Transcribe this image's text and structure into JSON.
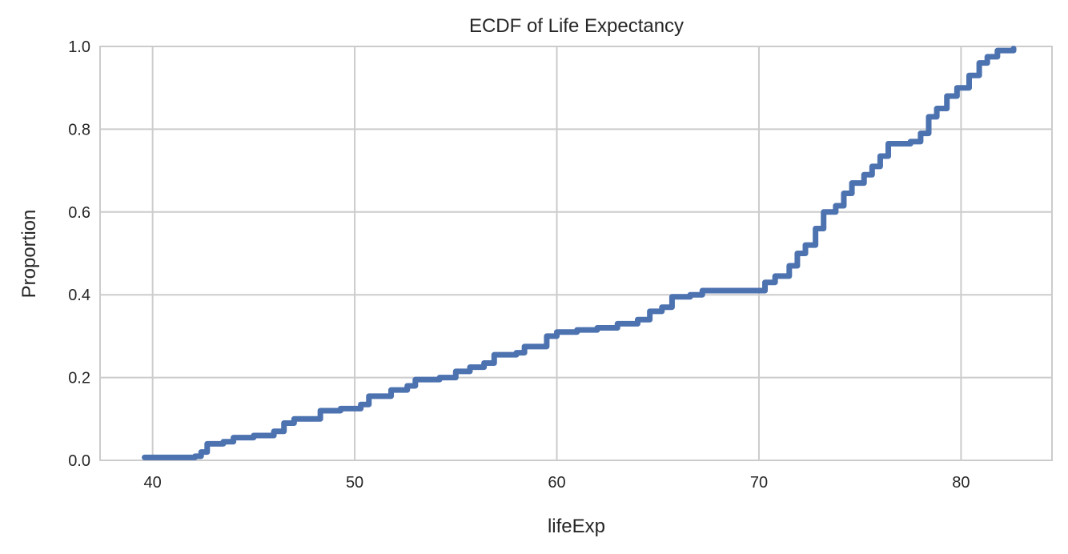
{
  "chart_data": {
    "type": "line",
    "title": "ECDF of Life Expectancy",
    "xlabel": "lifeExp",
    "ylabel": "Proportion",
    "xlim": [
      37.4,
      84.5
    ],
    "ylim": [
      0,
      1
    ],
    "xticks": [
      40,
      50,
      60,
      70,
      80
    ],
    "yticks": [
      "0.0",
      "0.2",
      "0.4",
      "0.6",
      "0.8",
      "1.0"
    ],
    "grid": true,
    "color": "#4c72b0",
    "series": [
      {
        "name": "ECDF",
        "x": [
          39.6,
          42.1,
          42.4,
          42.7,
          43.5,
          44.0,
          45.0,
          46.0,
          46.5,
          47.0,
          48.0,
          48.3,
          49.3,
          50.3,
          50.7,
          51.8,
          52.6,
          53.0,
          54.2,
          55.0,
          55.7,
          56.4,
          56.9,
          58.0,
          58.4,
          59.5,
          60.0,
          61.0,
          62.0,
          63.0,
          64.0,
          64.6,
          65.2,
          65.7,
          66.6,
          67.2,
          69.8,
          70.3,
          70.8,
          71.5,
          71.9,
          72.3,
          72.8,
          73.2,
          73.8,
          74.2,
          74.6,
          75.2,
          75.6,
          76.0,
          76.4,
          77.5,
          78.0,
          78.4,
          78.8,
          79.3,
          79.8,
          80.4,
          80.9,
          81.3,
          81.8,
          82.6
        ],
        "y": [
          0.007,
          0.01,
          0.02,
          0.04,
          0.045,
          0.055,
          0.06,
          0.07,
          0.09,
          0.1,
          0.1,
          0.12,
          0.125,
          0.135,
          0.155,
          0.17,
          0.18,
          0.195,
          0.2,
          0.215,
          0.225,
          0.235,
          0.255,
          0.26,
          0.275,
          0.3,
          0.31,
          0.315,
          0.32,
          0.33,
          0.34,
          0.36,
          0.37,
          0.395,
          0.4,
          0.41,
          0.41,
          0.43,
          0.445,
          0.47,
          0.5,
          0.52,
          0.56,
          0.6,
          0.615,
          0.645,
          0.67,
          0.69,
          0.71,
          0.735,
          0.765,
          0.77,
          0.79,
          0.83,
          0.85,
          0.88,
          0.9,
          0.93,
          0.96,
          0.975,
          0.99,
          0.995
        ]
      }
    ]
  }
}
